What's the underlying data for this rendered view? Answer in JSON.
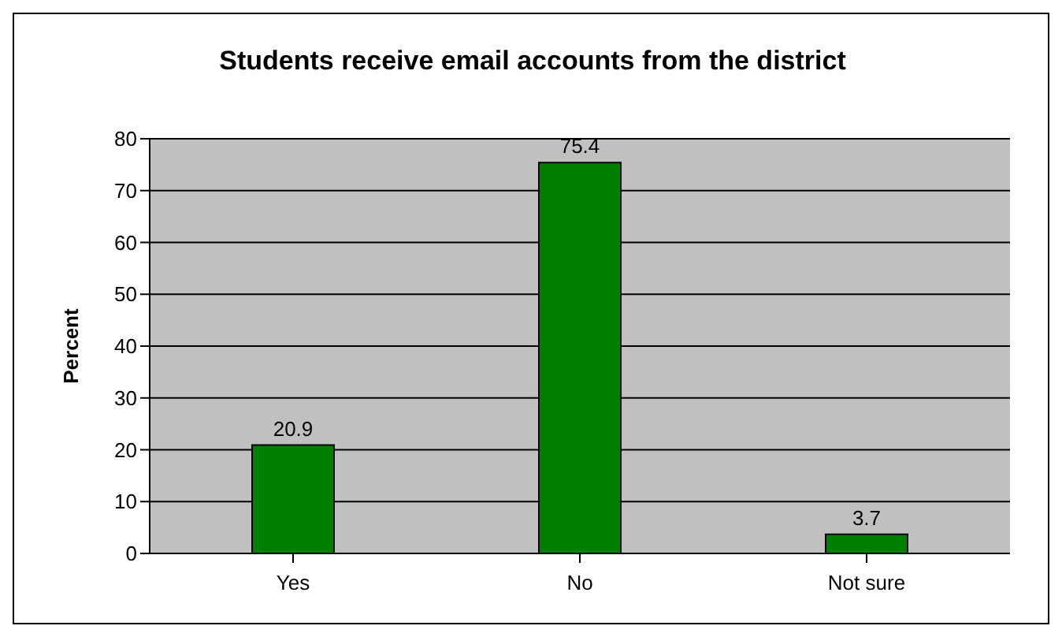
{
  "chart_data": {
    "type": "bar",
    "title": "Students receive email accounts from the district",
    "ylabel": "Percent",
    "categories": [
      "Yes",
      "No",
      "Not sure"
    ],
    "values": [
      20.9,
      75.4,
      3.7
    ],
    "color": "#008000",
    "ylim": [
      0,
      80
    ],
    "yticks": [
      0,
      10,
      20,
      30,
      40,
      50,
      60,
      70,
      80
    ],
    "grid": "y",
    "data_labels": true
  }
}
